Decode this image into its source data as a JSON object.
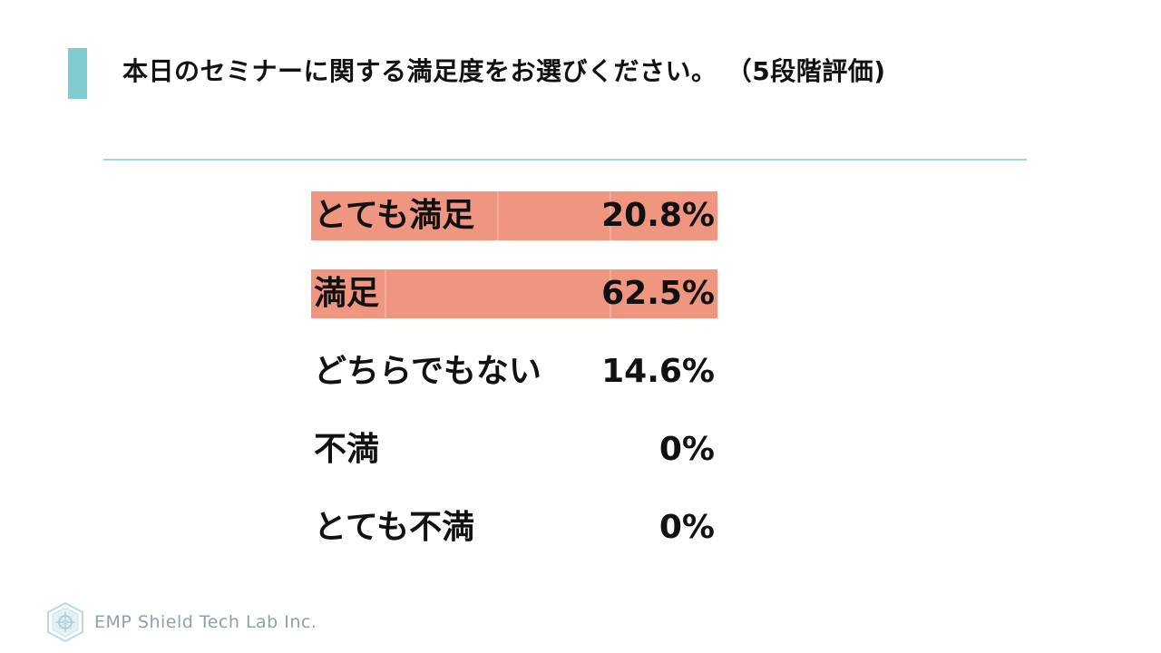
{
  "slide": {
    "title": "本日のセミナーに関する満足度をお選びください。 （5段階評価)",
    "accent_color": "#7ecbd0",
    "highlight_color": "#ef9580"
  },
  "results": [
    {
      "label": "とても満足",
      "value": "20.8%",
      "highlighted": true
    },
    {
      "label": "満足",
      "value": "62.5%",
      "highlighted": true
    },
    {
      "label": "どちらでもない",
      "value": "14.6%",
      "highlighted": false
    },
    {
      "label": "不満",
      "value": "0%",
      "highlighted": false
    },
    {
      "label": "とても不満",
      "value": "0%",
      "highlighted": false
    }
  ],
  "footer": {
    "logo_icon": "shield-logo-icon",
    "company": "EMP Shield Tech Lab Inc."
  }
}
